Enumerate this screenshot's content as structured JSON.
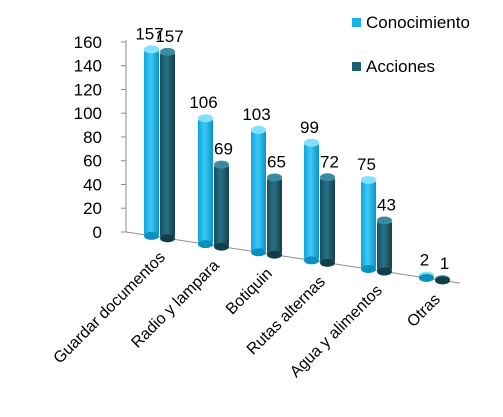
{
  "chart_data": {
    "type": "bar",
    "categories": [
      "Guardar documentos",
      "Radio y lampara",
      "Botiquin",
      "Rutas alternas",
      "Agua y alimentos",
      "Otras"
    ],
    "series": [
      {
        "name": "Conocimiento",
        "values": [
          157,
          106,
          103,
          99,
          75,
          2
        ],
        "color": "#16b4e8"
      },
      {
        "name": "Acciones",
        "values": [
          157,
          69,
          65,
          72,
          43,
          1
        ],
        "color": "#1f5f73"
      }
    ],
    "yticks": [
      0,
      20,
      40,
      60,
      80,
      100,
      120,
      140,
      160
    ],
    "ylim": [
      0,
      160
    ],
    "legend_position": "top-right",
    "grid": false
  }
}
